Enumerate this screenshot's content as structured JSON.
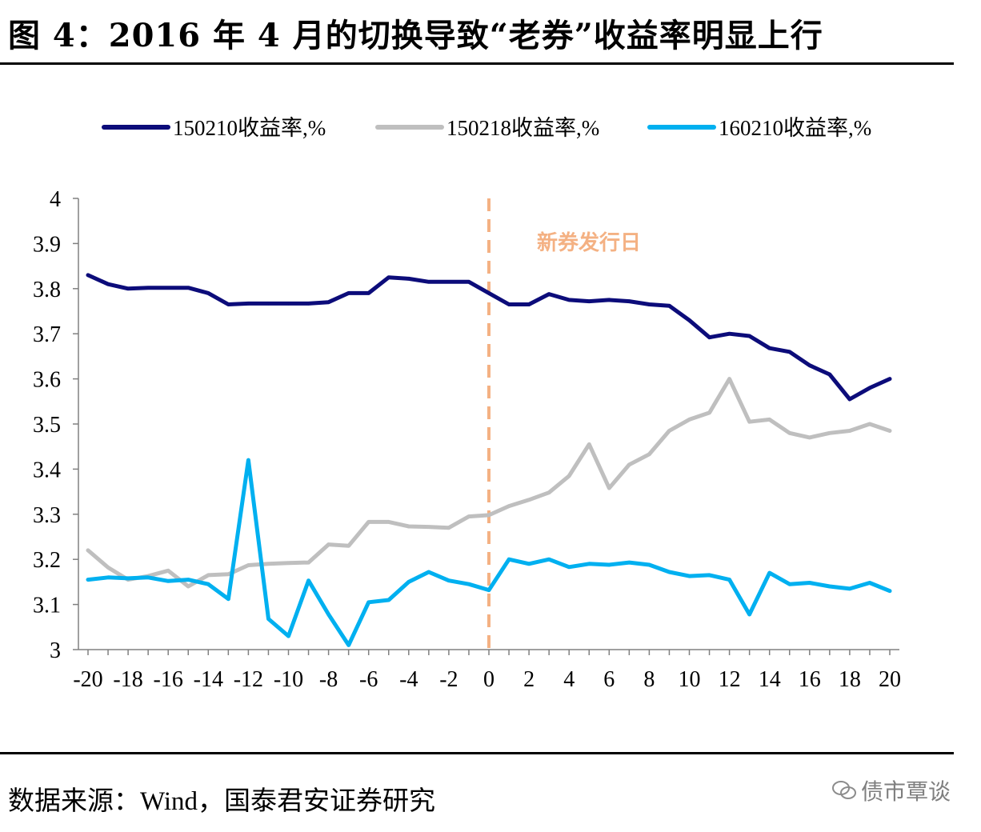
{
  "figure": {
    "title": "图 4：2016 年 4 月的切换导致“老券”收益率明显上行",
    "source": "数据来源：Wind，国泰君安证券研究",
    "watermark": "债市覃谈",
    "watermark_icon": "wechat-icon"
  },
  "chart_data": {
    "type": "line",
    "x": [
      -20,
      -19,
      -18,
      -17,
      -16,
      -15,
      -14,
      -13,
      -12,
      -11,
      -10,
      -9,
      -8,
      -7,
      -6,
      -5,
      -4,
      -3,
      -2,
      -1,
      0,
      1,
      2,
      3,
      4,
      5,
      6,
      7,
      8,
      9,
      10,
      11,
      12,
      13,
      14,
      15,
      16,
      17,
      18,
      19,
      20
    ],
    "series": [
      {
        "name": "150210收益率,%",
        "color": "#0c0c7a",
        "values": [
          3.83,
          3.81,
          3.8,
          3.802,
          3.802,
          3.802,
          3.79,
          3.765,
          3.767,
          3.767,
          3.767,
          3.767,
          3.77,
          3.79,
          3.79,
          3.825,
          3.822,
          3.815,
          3.815,
          3.815,
          3.79,
          3.765,
          3.765,
          3.788,
          3.775,
          3.772,
          3.775,
          3.772,
          3.765,
          3.762,
          3.73,
          3.692,
          3.7,
          3.695,
          3.668,
          3.66,
          3.63,
          3.61,
          3.555,
          3.58,
          3.6
        ]
      },
      {
        "name": "150218收益率,%",
        "color": "#bfbfbf",
        "values": [
          3.22,
          3.182,
          3.155,
          3.163,
          3.175,
          3.14,
          3.165,
          3.167,
          3.187,
          3.19,
          3.192,
          3.193,
          3.233,
          3.23,
          3.283,
          3.283,
          3.273,
          3.272,
          3.27,
          3.295,
          3.298,
          3.318,
          3.332,
          3.348,
          3.385,
          3.455,
          3.358,
          3.41,
          3.433,
          3.485,
          3.51,
          3.525,
          3.6,
          3.505,
          3.51,
          3.48,
          3.47,
          3.48,
          3.485,
          3.5,
          3.485
        ]
      },
      {
        "name": "160210收益率,%",
        "color": "#00b0f0",
        "values": [
          3.155,
          3.16,
          3.158,
          3.16,
          3.152,
          3.155,
          3.145,
          3.112,
          3.42,
          3.068,
          3.03,
          3.153,
          3.078,
          3.01,
          3.105,
          3.11,
          3.15,
          3.172,
          3.153,
          3.145,
          3.132,
          3.2,
          3.19,
          3.2,
          3.183,
          3.19,
          3.188,
          3.193,
          3.188,
          3.172,
          3.163,
          3.165,
          3.155,
          3.078,
          3.17,
          3.145,
          3.148,
          3.14,
          3.135,
          3.148,
          3.13
        ]
      }
    ],
    "x_ticks": [
      "-20",
      "-18",
      "-16",
      "-14",
      "-12",
      "-10",
      "-8",
      "-6",
      "-4",
      "-2",
      "0",
      "2",
      "4",
      "6",
      "8",
      "10",
      "12",
      "14",
      "16",
      "18",
      "20"
    ],
    "y_ticks": [
      "3",
      "3.1",
      "3.2",
      "3.3",
      "3.4",
      "3.5",
      "3.6",
      "3.7",
      "3.8",
      "3.9",
      "4"
    ],
    "xlim": [
      -20,
      20
    ],
    "ylim": [
      3,
      4
    ],
    "grid": false,
    "legend_position": "top",
    "annotation": {
      "text": "新券发行日",
      "x": 0,
      "color": "#f4b183"
    }
  }
}
